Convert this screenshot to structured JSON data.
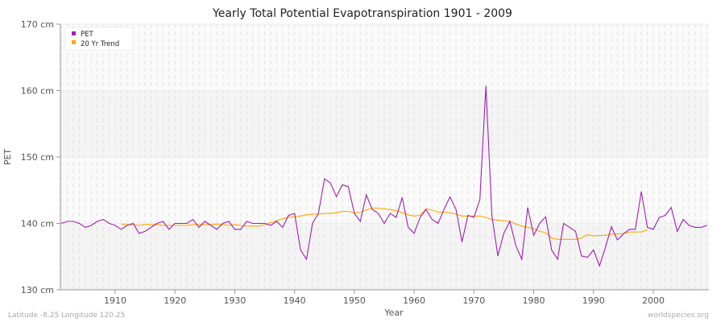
{
  "chart_data": {
    "type": "line",
    "title": "Yearly Total Potential Evapotranspiration 1901 - 2009",
    "xlabel": "Year",
    "ylabel": "PET",
    "xlim": [
      1901,
      2009
    ],
    "ylim": [
      130,
      170
    ],
    "y_ticks": [
      130,
      140,
      150,
      160,
      170
    ],
    "y_tick_labels": [
      "130 cm",
      "140 cm",
      "150 cm",
      "160 cm",
      "170 cm"
    ],
    "x_ticks": [
      1910,
      1920,
      1930,
      1940,
      1950,
      1960,
      1970,
      1980,
      1990,
      2000
    ],
    "x_tick_labels": [
      "1910",
      "1920",
      "1930",
      "1940",
      "1950",
      "1960",
      "1970",
      "1980",
      "1990",
      "2000"
    ],
    "grid": true,
    "legend_position": "top-left",
    "series": [
      {
        "name": "PET",
        "color": "#a020b0",
        "x_start": 1901,
        "values": [
          140.0,
          140.3,
          140.3,
          140.0,
          139.4,
          139.7,
          140.3,
          140.6,
          140.0,
          139.7,
          139.1,
          139.7,
          140.0,
          138.5,
          138.8,
          139.4,
          140.0,
          140.3,
          139.1,
          140.0,
          140.0,
          140.0,
          140.6,
          139.4,
          140.3,
          139.7,
          139.1,
          140.0,
          140.3,
          139.1,
          139.1,
          140.3,
          140.0,
          140.0,
          140.0,
          139.7,
          140.3,
          139.4,
          141.2,
          141.5,
          136.0,
          134.6,
          140.0,
          141.5,
          146.7,
          146.1,
          144.0,
          145.8,
          145.5,
          141.5,
          140.3,
          144.3,
          142.1,
          141.5,
          140.0,
          141.5,
          140.9,
          143.9,
          139.4,
          138.5,
          140.9,
          142.1,
          140.6,
          140.0,
          142.1,
          144.0,
          142.1,
          137.2,
          141.2,
          140.9,
          143.6,
          160.7,
          141.2,
          135.1,
          138.5,
          140.3,
          136.7,
          134.6,
          142.4,
          138.2,
          140.0,
          141.0,
          136.0,
          134.6,
          140.0,
          139.4,
          138.8,
          135.1,
          134.9,
          136.0,
          133.6,
          136.4,
          139.5,
          137.5,
          138.4,
          139.1,
          139.1,
          144.8,
          139.4,
          139.1,
          140.9,
          141.2,
          142.4,
          138.8,
          140.6,
          139.7,
          139.4,
          139.4,
          139.7
        ]
      },
      {
        "name": "20 Yr Trend",
        "color": "#ffa500",
        "x_start": 1911,
        "values": [
          139.9,
          139.8,
          139.8,
          139.7,
          139.8,
          139.8,
          139.8,
          139.7,
          139.7,
          139.7,
          139.7,
          139.7,
          139.8,
          139.8,
          139.8,
          139.8,
          139.9,
          139.8,
          139.7,
          139.8,
          139.7,
          139.6,
          139.6,
          139.6,
          139.8,
          140.1,
          140.4,
          140.7,
          140.9,
          141.0,
          141.1,
          141.3,
          141.4,
          141.4,
          141.5,
          141.5,
          141.6,
          141.8,
          141.8,
          141.6,
          141.7,
          142.0,
          142.3,
          142.3,
          142.2,
          142.1,
          141.9,
          141.6,
          141.3,
          141.1,
          141.2,
          142.2,
          142.0,
          141.7,
          141.7,
          141.6,
          141.4,
          141.1,
          141.1,
          141.1,
          141.1,
          140.9,
          140.6,
          140.5,
          140.4,
          140.3,
          139.9,
          139.6,
          139.4,
          139.2,
          138.8,
          138.6,
          137.8,
          137.6,
          137.6,
          137.6,
          137.6,
          137.8,
          138.3,
          138.1,
          138.2,
          138.2,
          138.4,
          138.4,
          138.5,
          138.7,
          138.7,
          138.7,
          139.0
        ]
      }
    ]
  },
  "footer": {
    "location": "Latitude -8.25 Longitude 120.25",
    "source": "worldspecies.org"
  }
}
